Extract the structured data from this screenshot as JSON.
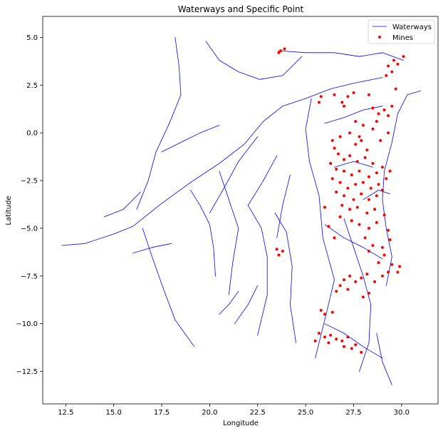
{
  "chart_data": {
    "type": "scatter",
    "title": "Waterways and Specific Point",
    "xlabel": "Longitude",
    "ylabel": "Latitude",
    "xlim": [
      11.3,
      31.9
    ],
    "ylim": [
      -14.2,
      6.1
    ],
    "x_ticks": [
      12.5,
      15.0,
      17.5,
      20.0,
      22.5,
      25.0,
      27.5,
      30.0
    ],
    "x_tick_labels": [
      "12.5",
      "15.0",
      "17.5",
      "20.0",
      "22.5",
      "25.0",
      "27.5",
      "30.0"
    ],
    "y_ticks": [
      5.0,
      2.5,
      0.0,
      -2.5,
      -5.0,
      -7.5,
      -10.0,
      -12.5
    ],
    "y_tick_labels": [
      "5.0",
      "2.5",
      "0.0",
      "−2.5",
      "−5.0",
      "−7.5",
      "−10.0",
      "−12.5"
    ],
    "grid": false,
    "legend_position": "upper right",
    "legend": [
      {
        "label": "Waterways",
        "kind": "line",
        "color": "#0000ff"
      },
      {
        "label": "Mines",
        "kind": "marker",
        "color": "#ff0000"
      }
    ],
    "series": [
      {
        "name": "Waterways",
        "kind": "lines",
        "color": "#0000ff",
        "lines": [
          [
            [
              12.3,
              -5.9
            ],
            [
              13.5,
              -5.8
            ],
            [
              15.0,
              -5.3
            ],
            [
              16.0,
              -4.9
            ],
            [
              17.5,
              -3.7
            ],
            [
              19.0,
              -2.6
            ],
            [
              20.5,
              -1.6
            ],
            [
              21.8,
              -0.6
            ],
            [
              22.8,
              0.6
            ],
            [
              23.8,
              1.4
            ],
            [
              25.0,
              1.8
            ],
            [
              26.3,
              2.3
            ],
            [
              27.5,
              2.6
            ],
            [
              29.0,
              2.9
            ]
          ],
          [
            [
              18.2,
              5.0
            ],
            [
              18.4,
              3.5
            ],
            [
              18.5,
              2.0
            ],
            [
              17.9,
              0.5
            ],
            [
              17.2,
              -1.0
            ],
            [
              16.8,
              -2.5
            ],
            [
              16.2,
              -4.0
            ]
          ],
          [
            [
              19.2,
              -11.2
            ],
            [
              18.2,
              -9.8
            ],
            [
              17.6,
              -8.2
            ],
            [
              17.0,
              -6.5
            ],
            [
              16.5,
              -5.0
            ]
          ],
          [
            [
              20.3,
              -7.5
            ],
            [
              20.2,
              -6.0
            ],
            [
              20.0,
              -4.8
            ],
            [
              19.5,
              -3.8
            ],
            [
              19.0,
              -3.0
            ]
          ],
          [
            [
              21.0,
              -8.5
            ],
            [
              21.2,
              -6.8
            ],
            [
              21.5,
              -5.0
            ],
            [
              21.0,
              -3.5
            ],
            [
              20.5,
              -2.0
            ]
          ],
          [
            [
              22.5,
              -10.6
            ],
            [
              23.0,
              -8.5
            ],
            [
              23.0,
              -6.5
            ],
            [
              22.7,
              -5.0
            ],
            [
              22.0,
              -3.8
            ]
          ],
          [
            [
              24.5,
              -11.0
            ],
            [
              24.2,
              -9.0
            ],
            [
              24.3,
              -7.0
            ],
            [
              24.0,
              -5.2
            ],
            [
              23.4,
              -4.2
            ]
          ],
          [
            [
              25.5,
              -11.8
            ],
            [
              26.0,
              -9.8
            ],
            [
              26.5,
              -7.7
            ],
            [
              25.9,
              -5.5
            ],
            [
              25.7,
              -3.3
            ],
            [
              25.2,
              -1.5
            ],
            [
              25.0,
              0.2
            ],
            [
              25.3,
              1.8
            ]
          ],
          [
            [
              27.8,
              -12.5
            ],
            [
              28.3,
              -11.0
            ],
            [
              28.4,
              -9.0
            ],
            [
              28.0,
              -7.5
            ],
            [
              27.5,
              -6.0
            ],
            [
              27.0,
              -4.5
            ]
          ],
          [
            [
              29.5,
              -13.2
            ],
            [
              29.0,
              -12.0
            ],
            [
              28.7,
              -10.5
            ]
          ],
          [
            [
              29.2,
              -8.0
            ],
            [
              29.5,
              -6.5
            ],
            [
              29.2,
              -5.0
            ],
            [
              29.0,
              -3.5
            ],
            [
              29.1,
              -2.0
            ],
            [
              29.5,
              -0.5
            ],
            [
              29.8,
              1.0
            ],
            [
              30.3,
              2.0
            ],
            [
              31.0,
              2.2
            ]
          ],
          [
            [
              19.8,
              4.8
            ],
            [
              20.5,
              3.8
            ],
            [
              21.5,
              3.2
            ],
            [
              22.6,
              2.8
            ],
            [
              23.8,
              3.0
            ],
            [
              24.8,
              4.0
            ]
          ],
          [
            [
              23.6,
              4.3
            ],
            [
              25.0,
              4.2
            ],
            [
              26.5,
              4.2
            ],
            [
              27.8,
              4.0
            ],
            [
              29.0,
              4.2
            ],
            [
              30.1,
              3.8
            ]
          ],
          [
            [
              22.5,
              -0.2
            ],
            [
              21.5,
              -1.5
            ],
            [
              20.8,
              -2.8
            ],
            [
              20.0,
              -4.2
            ]
          ],
          [
            [
              23.5,
              -1.2
            ],
            [
              22.8,
              -2.5
            ],
            [
              22.0,
              -3.8
            ]
          ],
          [
            [
              24.2,
              -2.2
            ],
            [
              23.8,
              -3.8
            ],
            [
              23.5,
              -5.5
            ]
          ],
          [
            [
              14.5,
              -4.4
            ],
            [
              15.5,
              -4.0
            ],
            [
              16.4,
              -3.1
            ]
          ],
          [
            [
              17.5,
              -1.0
            ],
            [
              18.5,
              -0.5
            ],
            [
              19.5,
              0.0
            ],
            [
              20.5,
              0.4
            ]
          ],
          [
            [
              26.0,
              -4.8
            ],
            [
              27.0,
              -5.5
            ],
            [
              28.0,
              -6.0
            ],
            [
              29.0,
              -6.6
            ]
          ],
          [
            [
              21.3,
              -10.0
            ],
            [
              22.0,
              -9.0
            ],
            [
              22.5,
              -8.0
            ]
          ],
          [
            [
              26.0,
              0.5
            ],
            [
              27.0,
              0.8
            ],
            [
              28.0,
              1.2
            ],
            [
              29.0,
              1.4
            ]
          ],
          [
            [
              26.5,
              -1.8
            ],
            [
              27.5,
              -1.5
            ],
            [
              28.5,
              -1.8
            ]
          ],
          [
            [
              28.0,
              -3.5
            ],
            [
              28.8,
              -3.0
            ],
            [
              29.4,
              -3.2
            ]
          ],
          [
            [
              26.0,
              -10.0
            ],
            [
              27.0,
              -10.5
            ],
            [
              28.0,
              -11.2
            ],
            [
              29.0,
              -11.8
            ]
          ],
          [
            [
              16.0,
              -6.3
            ],
            [
              17.0,
              -6.0
            ],
            [
              18.0,
              -5.8
            ]
          ],
          [
            [
              20.5,
              -9.5
            ],
            [
              21.0,
              -9.0
            ],
            [
              21.5,
              -8.3
            ]
          ]
        ]
      },
      {
        "name": "Mines",
        "kind": "points",
        "color": "#ff0000",
        "points": [
          [
            23.7,
            4.3
          ],
          [
            23.9,
            4.4
          ],
          [
            23.6,
            4.2
          ],
          [
            29.3,
            3.5
          ],
          [
            29.5,
            3.2
          ],
          [
            29.6,
            3.8
          ],
          [
            30.1,
            4.0
          ],
          [
            29.2,
            3.0
          ],
          [
            29.8,
            3.6
          ],
          [
            25.8,
            1.9
          ],
          [
            26.5,
            2.0
          ],
          [
            27.5,
            2.1
          ],
          [
            27.2,
            1.9
          ],
          [
            28.3,
            2.0
          ],
          [
            29.7,
            2.3
          ],
          [
            25.7,
            1.6
          ],
          [
            27.0,
            1.4
          ],
          [
            26.9,
            1.6
          ],
          [
            28.5,
            1.3
          ],
          [
            28.8,
            1.0
          ],
          [
            29.1,
            1.2
          ],
          [
            29.3,
            0.9
          ],
          [
            28.7,
            0.6
          ],
          [
            29.5,
            1.4
          ],
          [
            28.5,
            0.2
          ],
          [
            29.3,
            0.0
          ],
          [
            28.9,
            -0.4
          ],
          [
            27.6,
            -0.6
          ],
          [
            28.2,
            -0.9
          ],
          [
            27.8,
            -0.2
          ],
          [
            28.0,
            0.4
          ],
          [
            27.6,
            0.6
          ],
          [
            26.5,
            -0.8
          ],
          [
            26.7,
            -1.1
          ],
          [
            27.0,
            -1.4
          ],
          [
            27.3,
            -1.2
          ],
          [
            27.7,
            -1.5
          ],
          [
            28.1,
            -1.3
          ],
          [
            28.5,
            -1.6
          ],
          [
            26.3,
            -1.6
          ],
          [
            26.6,
            -1.9
          ],
          [
            27.0,
            -2.0
          ],
          [
            27.4,
            -2.2
          ],
          [
            27.8,
            -2.0
          ],
          [
            28.3,
            -2.3
          ],
          [
            28.7,
            -2.1
          ],
          [
            29.0,
            -1.8
          ],
          [
            29.4,
            -2.0
          ],
          [
            26.4,
            -2.4
          ],
          [
            26.8,
            -2.6
          ],
          [
            27.2,
            -2.9
          ],
          [
            27.6,
            -2.7
          ],
          [
            28.0,
            -2.6
          ],
          [
            28.4,
            -2.9
          ],
          [
            28.8,
            -2.7
          ],
          [
            29.2,
            -2.4
          ],
          [
            26.6,
            -3.1
          ],
          [
            27.0,
            -3.3
          ],
          [
            27.5,
            -3.5
          ],
          [
            27.9,
            -3.2
          ],
          [
            28.3,
            -3.5
          ],
          [
            28.7,
            -3.3
          ],
          [
            29.0,
            -3.0
          ],
          [
            26.9,
            -3.8
          ],
          [
            27.3,
            -4.0
          ],
          [
            27.7,
            -3.9
          ],
          [
            28.2,
            -4.2
          ],
          [
            28.6,
            -4.0
          ],
          [
            29.1,
            -4.3
          ],
          [
            27.4,
            -4.6
          ],
          [
            27.8,
            -4.8
          ],
          [
            28.3,
            -5.0
          ],
          [
            28.7,
            -4.7
          ],
          [
            29.3,
            -5.1
          ],
          [
            28.1,
            -5.5
          ],
          [
            28.5,
            -5.9
          ],
          [
            29.0,
            -6.0
          ],
          [
            29.4,
            -5.6
          ],
          [
            28.3,
            -6.2
          ],
          [
            29.1,
            -6.4
          ],
          [
            28.8,
            -6.8
          ],
          [
            29.5,
            -6.9
          ],
          [
            29.9,
            -7.0
          ],
          [
            29.8,
            -7.3
          ],
          [
            27.3,
            -7.5
          ],
          [
            27.6,
            -7.8
          ],
          [
            27.9,
            -7.6
          ],
          [
            28.2,
            -7.4
          ],
          [
            28.6,
            -7.8
          ],
          [
            29.0,
            -7.5
          ],
          [
            29.3,
            -7.3
          ],
          [
            27.0,
            -7.7
          ],
          [
            26.8,
            -8.0
          ],
          [
            27.2,
            -8.2
          ],
          [
            26.6,
            -8.3
          ],
          [
            28.0,
            -8.6
          ],
          [
            28.3,
            -8.4
          ],
          [
            25.8,
            -9.3
          ],
          [
            26.0,
            -9.5
          ],
          [
            26.4,
            -9.4
          ],
          [
            25.7,
            -10.5
          ],
          [
            26.0,
            -10.7
          ],
          [
            26.3,
            -10.6
          ],
          [
            26.6,
            -10.8
          ],
          [
            26.9,
            -10.9
          ],
          [
            27.2,
            -10.7
          ],
          [
            26.2,
            -11.0
          ],
          [
            27.0,
            -11.2
          ],
          [
            27.6,
            -11.1
          ],
          [
            27.9,
            -11.5
          ],
          [
            27.4,
            -11.3
          ],
          [
            25.5,
            -10.9
          ],
          [
            23.5,
            -6.1
          ],
          [
            23.8,
            -6.2
          ],
          [
            23.6,
            -6.4
          ],
          [
            26.5,
            -5.5
          ],
          [
            26.2,
            -4.9
          ],
          [
            26.8,
            -4.4
          ],
          [
            26.0,
            -3.9
          ],
          [
            26.4,
            -0.4
          ],
          [
            26.8,
            -0.2
          ],
          [
            27.3,
            0.0
          ],
          [
            27.9,
            -0.4
          ]
        ]
      }
    ]
  }
}
